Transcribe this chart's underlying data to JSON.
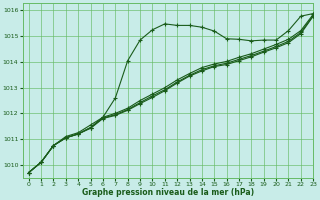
{
  "title": "Graphe pression niveau de la mer (hPa)",
  "background_color": "#c8ece8",
  "grid_color": "#66bb66",
  "line_color": "#1a5c1a",
  "xlim": [
    -0.5,
    23
  ],
  "ylim": [
    1009.5,
    1016.3
  ],
  "yticks": [
    1010,
    1011,
    1012,
    1013,
    1014,
    1015,
    1016
  ],
  "xticks": [
    0,
    1,
    2,
    3,
    4,
    5,
    6,
    7,
    8,
    9,
    10,
    11,
    12,
    13,
    14,
    15,
    16,
    17,
    18,
    19,
    20,
    21,
    22,
    23
  ],
  "series": [
    [
      1009.7,
      1010.1,
      1010.75,
      1011.1,
      1011.25,
      1011.55,
      1011.85,
      1012.6,
      1014.05,
      1014.85,
      1015.25,
      1015.48,
      1015.42,
      1015.42,
      1015.35,
      1015.2,
      1014.9,
      1014.88,
      1014.82,
      1014.85,
      1014.85,
      1015.22,
      1015.78,
      1015.88
    ],
    [
      1009.7,
      1010.1,
      1010.75,
      1011.05,
      1011.2,
      1011.45,
      1011.85,
      1012.0,
      1012.2,
      1012.5,
      1012.75,
      1013.0,
      1013.3,
      1013.55,
      1013.78,
      1013.92,
      1014.02,
      1014.18,
      1014.32,
      1014.5,
      1014.68,
      1014.88,
      1015.22,
      1015.85
    ],
    [
      1009.7,
      1010.1,
      1010.75,
      1011.05,
      1011.2,
      1011.45,
      1011.82,
      1011.95,
      1012.15,
      1012.42,
      1012.68,
      1012.92,
      1013.22,
      1013.48,
      1013.7,
      1013.85,
      1013.95,
      1014.1,
      1014.25,
      1014.42,
      1014.6,
      1014.8,
      1015.15,
      1015.8
    ],
    [
      1009.7,
      1010.1,
      1010.75,
      1011.05,
      1011.2,
      1011.42,
      1011.8,
      1011.92,
      1012.12,
      1012.38,
      1012.62,
      1012.88,
      1013.18,
      1013.45,
      1013.65,
      1013.82,
      1013.9,
      1014.05,
      1014.2,
      1014.38,
      1014.55,
      1014.75,
      1015.1,
      1015.78
    ]
  ]
}
